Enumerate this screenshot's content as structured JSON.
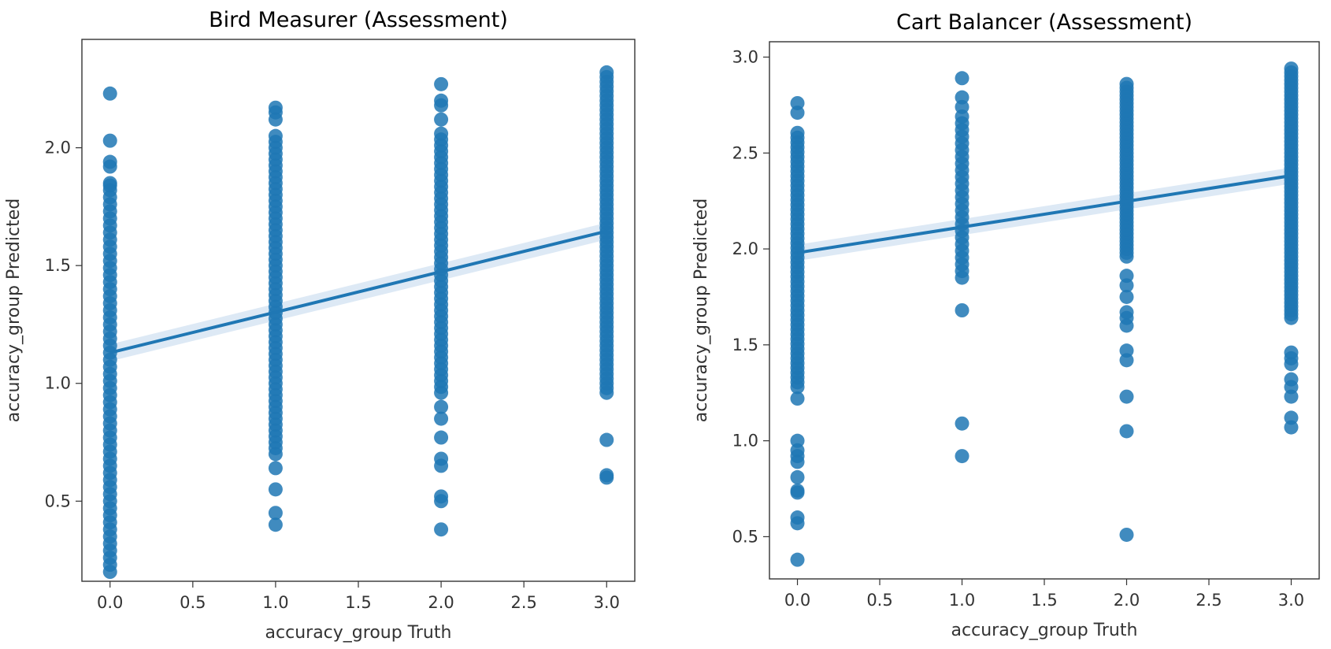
{
  "chart_data": [
    {
      "type": "scatter",
      "title": "Bird Measurer (Assessment)",
      "xlabel": "accuracy_group Truth",
      "ylabel": "accuracy_group Predicted",
      "xlim": [
        -0.17,
        3.17
      ],
      "ylim": [
        0.16,
        2.46
      ],
      "xticks": [
        "0.0",
        "0.5",
        "1.0",
        "1.5",
        "2.0",
        "2.5",
        "3.0"
      ],
      "xtick_values": [
        0,
        0.5,
        1.0,
        1.5,
        2.0,
        2.5,
        3.0
      ],
      "yticks": [
        "0.5",
        "1.0",
        "1.5",
        "2.0"
      ],
      "ytick_values": [
        0.5,
        1.0,
        1.5,
        2.0
      ],
      "point_color": "#1f77b4",
      "line_color": "#1f77b4",
      "ci_color": "#c6dbef",
      "regression": {
        "intercept": 1.13,
        "slope": 0.172
      },
      "ci_halfwidth": 0.03,
      "columns": [
        {
          "x": 0,
          "min": 0.2,
          "max": 1.85,
          "step": 0.03,
          "extra": [
            2.23,
            2.03,
            1.94,
            1.92,
            1.84
          ]
        },
        {
          "x": 1,
          "min": 0.7,
          "max": 2.05,
          "step": 0.025,
          "extra": [
            2.17,
            2.15,
            2.12,
            0.64,
            0.55,
            0.45,
            0.4
          ]
        },
        {
          "x": 2,
          "min": 0.96,
          "max": 2.05,
          "step": 0.025,
          "extra": [
            2.27,
            2.2,
            2.18,
            2.12,
            2.06,
            0.9,
            0.85,
            0.77,
            0.68,
            0.65,
            0.52,
            0.5,
            0.38
          ]
        },
        {
          "x": 3,
          "min": 0.96,
          "max": 2.32,
          "step": 0.02,
          "extra": [
            0.76,
            0.61,
            0.6
          ]
        }
      ]
    },
    {
      "type": "scatter",
      "title": "Cart Balancer (Assessment)",
      "xlabel": "accuracy_group Truth",
      "ylabel": "accuracy_group Predicted",
      "xlim": [
        -0.17,
        3.17
      ],
      "ylim": [
        0.28,
        3.08
      ],
      "xticks": [
        "0.0",
        "0.5",
        "1.0",
        "1.5",
        "2.0",
        "2.5",
        "3.0"
      ],
      "xtick_values": [
        0,
        0.5,
        1.0,
        1.5,
        2.0,
        2.5,
        3.0
      ],
      "yticks": [
        "0.5",
        "1.0",
        "1.5",
        "2.0",
        "2.5",
        "3.0"
      ],
      "ytick_values": [
        0.5,
        1.0,
        1.5,
        2.0,
        2.5,
        3.0
      ],
      "point_color": "#1f77b4",
      "line_color": "#1f77b4",
      "ci_color": "#c6dbef",
      "regression": {
        "intercept": 1.98,
        "slope": 0.134
      },
      "ci_halfwidth": 0.035,
      "columns": [
        {
          "x": 0,
          "min": 1.28,
          "max": 2.62,
          "step": 0.025,
          "extra": [
            2.76,
            2.71,
            1.22,
            1.0,
            0.95,
            0.92,
            0.89,
            0.81,
            0.74,
            0.73,
            0.6,
            0.57,
            0.38
          ]
        },
        {
          "x": 1,
          "min": 1.85,
          "max": 2.7,
          "step": 0.035,
          "extra": [
            2.89,
            2.79,
            2.74,
            1.68,
            1.09,
            0.92
          ]
        },
        {
          "x": 2,
          "min": 1.96,
          "max": 2.87,
          "step": 0.02,
          "extra": [
            1.86,
            1.81,
            1.75,
            1.67,
            1.64,
            1.6,
            1.47,
            1.42,
            1.23,
            1.05,
            0.51
          ]
        },
        {
          "x": 3,
          "min": 1.64,
          "max": 2.95,
          "step": 0.02,
          "extra": [
            1.46,
            1.43,
            1.4,
            1.32,
            1.28,
            1.23,
            1.12,
            1.07
          ]
        }
      ]
    }
  ]
}
